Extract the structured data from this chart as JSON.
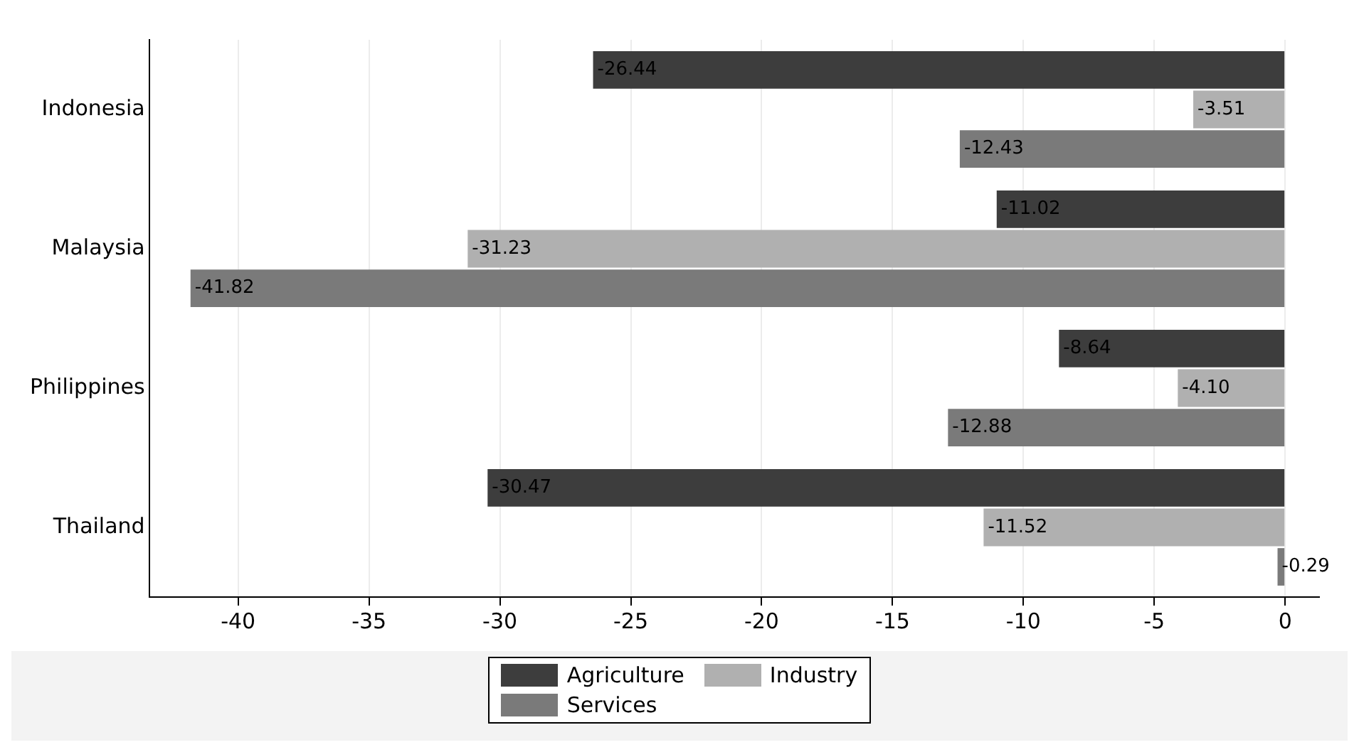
{
  "chart_data": {
    "type": "bar",
    "orientation": "horizontal",
    "categories": [
      "Indonesia",
      "Malaysia",
      "Philippines",
      "Thailand"
    ],
    "series": [
      {
        "name": "Agriculture",
        "color": "#3d3d3d",
        "values": [
          -26.44,
          -11.02,
          -8.64,
          -30.47
        ],
        "value_labels": [
          "-26.44",
          "-11.02",
          "-8.64",
          "-30.47"
        ]
      },
      {
        "name": "Industry",
        "color": "#b0b0b0",
        "values": [
          -3.51,
          -31.23,
          -4.1,
          -11.52
        ],
        "value_labels": [
          "-3.51",
          "-31.23",
          "-4.10",
          "-11.52"
        ]
      },
      {
        "name": "Services",
        "color": "#7a7a7a",
        "values": [
          -12.43,
          -41.82,
          -12.88,
          -0.29
        ],
        "value_labels": [
          "-12.43",
          "-41.82",
          "-12.88",
          "-0.29"
        ]
      }
    ],
    "xlim": [
      -43.4,
      1.3
    ],
    "xticks": [
      -40,
      -35,
      -30,
      -25,
      -20,
      -15,
      -10,
      -5,
      0
    ],
    "grid": "x",
    "legend": "bottom"
  }
}
